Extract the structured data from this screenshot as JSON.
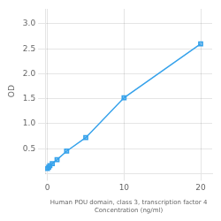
{
  "chart_data": {
    "type": "line",
    "x": [
      0,
      0.156,
      0.313,
      0.625,
      1.25,
      2.5,
      5,
      10,
      20
    ],
    "values": [
      0.1,
      0.13,
      0.16,
      0.2,
      0.28,
      0.45,
      0.72,
      1.52,
      2.6
    ],
    "xlabel": [
      "Human POU domain, class 3, transcription factor 4",
      "Concentration (ng/ml)"
    ],
    "ylabel": "OD",
    "xlim": [
      -0.3,
      21.5
    ],
    "ylim": [
      0.0,
      3.3
    ],
    "xticks": [
      0,
      10,
      20
    ],
    "yticks": [
      0.5,
      {
        "value": 1.0,
        "label": "1.0"
      },
      1.5,
      {
        "value": 2.0,
        "label": "2.0"
      },
      2.5,
      {
        "value": 3.0,
        "label": "3.0"
      }
    ],
    "marker": "square",
    "grid": true
  }
}
